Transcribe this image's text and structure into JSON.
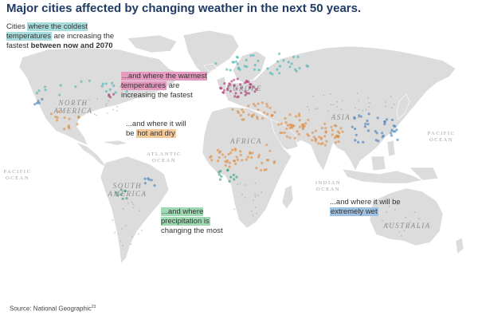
{
  "title": "Major cities affected by changing weather in the next 50 years.",
  "annotations": {
    "cold": {
      "pre": "Cities ",
      "highlight": "where the coldest temperatures",
      "post": " are increasing the fastest ",
      "bold": "between now and 2070"
    },
    "warm": {
      "highlight": "...and where the warmest temperatures",
      "post": " are increasing the fastest"
    },
    "dry": {
      "pre": "...and where it will be ",
      "highlight": "hot and dry"
    },
    "precipitation": {
      "highlight": "...and where precipitation is",
      "post": " changing the most"
    },
    "wet": {
      "pre": "...and where it will be ",
      "highlight": "extremely wet"
    }
  },
  "regions": {
    "north_america": [
      "NORTH",
      "AMERICA"
    ],
    "south_america": [
      "SOUTH",
      "AMERICA"
    ],
    "europe": "EUROPE",
    "africa": "AFRICA",
    "asia": "ASIA",
    "australia": "AUSTRALIA",
    "atlantic": [
      "ATLANTIC",
      "OCEAN"
    ],
    "pacific_left": [
      "PACIFIC",
      "OCEAN"
    ],
    "pacific_right": [
      "PACIFIC",
      "OCEAN"
    ],
    "indian": [
      "INDIAN",
      "OCEAN"
    ]
  },
  "source": {
    "text": "Source: National Geographic",
    "ref": "23"
  },
  "colors": {
    "title": "#1f3b63",
    "land": "#dcdcdc",
    "cold": "#3fb4b4",
    "warm": "#a8336b",
    "dry": "#dd8a3e",
    "precipitation": "#2f9a78",
    "wet": "#3d79b8",
    "none": "#9a9a9a"
  },
  "legend_categories": [
    "cold",
    "warm",
    "dry",
    "precipitation",
    "wet"
  ]
}
